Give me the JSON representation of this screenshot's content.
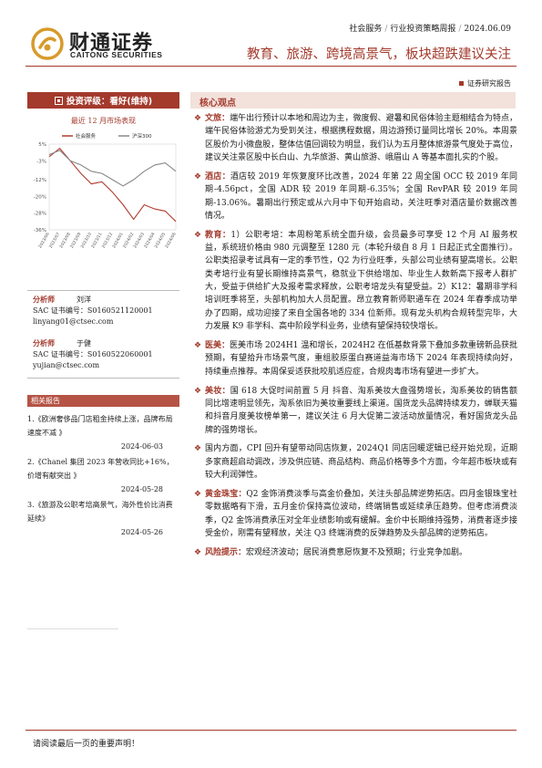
{
  "header": {
    "brand_cn": "财通证券",
    "brand_en": "CAITONG SECURITIES",
    "industry": "社会服务",
    "report_series": "行业投资策略周报",
    "date": "2024.06.09",
    "title": "教育、旅游、跨境高景气，板块超跌建议关注",
    "report_type": "证券研究报告"
  },
  "rating": {
    "label": "投资评级：看好(维持)"
  },
  "chart_data": {
    "type": "line",
    "title": "最近 12 月市场表现",
    "x": [
      "2023/06",
      "2023/07",
      "2023/08",
      "2023/09",
      "2023/10",
      "2023/11",
      "2023/12",
      "2024/01",
      "2024/02",
      "2024/03",
      "2024/04",
      "2024/05",
      "2024/06"
    ],
    "series": [
      {
        "name": "社会服务",
        "color": "#b23c2e",
        "values": [
          -1,
          3,
          -3,
          -9,
          -14,
          -13,
          -18,
          -24,
          -31,
          -24,
          -26,
          -27,
          -32
        ]
      },
      {
        "name": "沪深300",
        "color": "#888888",
        "values": [
          0,
          2,
          -3,
          -5,
          -8,
          -9,
          -12,
          -15,
          -12,
          -8,
          -5,
          -4,
          -8
        ]
      }
    ],
    "yticks": [
      "5%",
      "-3%",
      "-12%",
      "-20%",
      "-28%",
      "-36%"
    ],
    "ylim": [
      -36,
      5
    ],
    "legend": "top"
  },
  "analysts": [
    {
      "role": "分析师",
      "name": "刘洋",
      "sac": "SAC 证书编号：S0160521120001",
      "email": "linyang01@ctsec.com"
    },
    {
      "role": "分析师",
      "name": "于健",
      "sac": "SAC 证书编号：S0160522060001",
      "email": "yujian@ctsec.com"
    }
  ],
  "related": {
    "title": "相关报告",
    "items": [
      {
        "text": "1.《欧洲奢侈品门店租金持续上涨，品牌布局速度不减 》",
        "date": "2024-06-03"
      },
      {
        "text": "2.《Chanel 集团 2023 年营收同比+16%，价增有献突出 》",
        "date": "2024-05-28"
      },
      {
        "text": "3.《旅游及公职考培高景气，海外性价比消费延续》",
        "date": "2024-05-26"
      }
    ]
  },
  "core": {
    "title": "核心观点",
    "paragraphs": [
      {
        "label": "文旅：",
        "text": "端午出行预计以本地和周边为主，微度假、避暑和民俗体验主题相结合为特点，端午民俗体验游尤为受到关注，根据携程数据，周边游预订量同比增长 20%。本周景区股价为小微盘股，整体估值回调较为明显，我们认为五月整体旅游景气度处于高位，建议关注景区股中长白山、九华旅游、黄山旅游、峨眉山 A 等基本面扎实的个股。"
      },
      {
        "label": "酒店：",
        "text": "酒店较 2019 年恢复度环比改善，2024 年第 22 周全国 OCC 较 2019 年同期-4.56pct，全国 ADR 较 2019 年同期-6.35%；全国 RevPAR 较 2019 年同期-13.06%。暑期出行预定或从六月中下旬开始启动，关注旺季对酒店量价数据改善情况。"
      },
      {
        "label": "教育：",
        "text": "1）公职考培：本周粉笔系统全面升级，会员最多可享受 12 个月 AI 服务权益，系统班价格由 980 元调整至 1280 元（本轮升级自 8 月 1 日起正式全面推行）。公职类招录考试具有一定的季节性，Q2 为行业旺季，头部公司业绩有望高增长。公职类考培行业有望长期维持高景气，稳就业下供给增加、毕业生人数新高下报考人群扩大，受益于供给扩大及报考需求释放，公职考培龙头有望受益。2）K12：暑期非学科培训旺季将至，头部机构加大人员配置。昂立教育新师职通车在 2024 年春季成功举办了四期，成功迎接了来自全国各地的 334 位新师。现有龙头机构合规转型完毕，大力发展 K9 非学科、高中阶段学科业务，业绩有望保持较快增长。"
      },
      {
        "label": "医美：",
        "text": "医美市场 2024H1 温和增长，2024H2 在低基数背景下叠加多款重磅新品获批预期，有望拾升市场景气度，重组胶原蛋白赛道益海市场下 2024 年表现持续向好，持续重点推荐。本周保妥适获批咬肌适应症，合规肉毒市场有望进一步扩大。"
      },
      {
        "label": "美妆：",
        "text": "国 618 大促时间前置 5 月 抖音、淘系美妆大盘强势增长，淘系美妆的销售额同比增速明显领先，淘系依旧为美妆重要线上渠道。国货龙头品牌持续发力，蝉联天猫和抖音月度美妆榜单第一，建议关注 6 月大促第二波活动放量情况，看好国货龙头品牌的强势增长。"
      },
      {
        "label": "",
        "text": "国内方面，CPI 回升有望带动同店恢复，2024Q1 同店回暖逻辑已经开始兑现，近期多家商超启动调改，涉及供应链、商品结构、商品价格等多个方面，今年超市板块或有较大利润弹性。"
      },
      {
        "label": "黄金珠宝：",
        "text": "Q2 金饰消费淡季与高金价叠加，关注头部品牌逆势拓店。四月金银珠宝社零数据略有下滑，五月金价保持高位波动，终端销售或延续承压趋势。但考虑消费淡季，Q2 金饰消费承压对全年业绩影响或有缓解。金价中长期维持强势，消费者逐步接受金价，刚需有望释放，关注 Q3 终端消费的反弹趋势及头部品牌的逆势拓店。"
      },
      {
        "label": "风险提示：",
        "text": "宏观经济波动；居民消费意愿恢复不及预期；行业竞争加剧。"
      }
    ]
  },
  "footer": {
    "text": "请阅读最后一页的重要声明！"
  }
}
